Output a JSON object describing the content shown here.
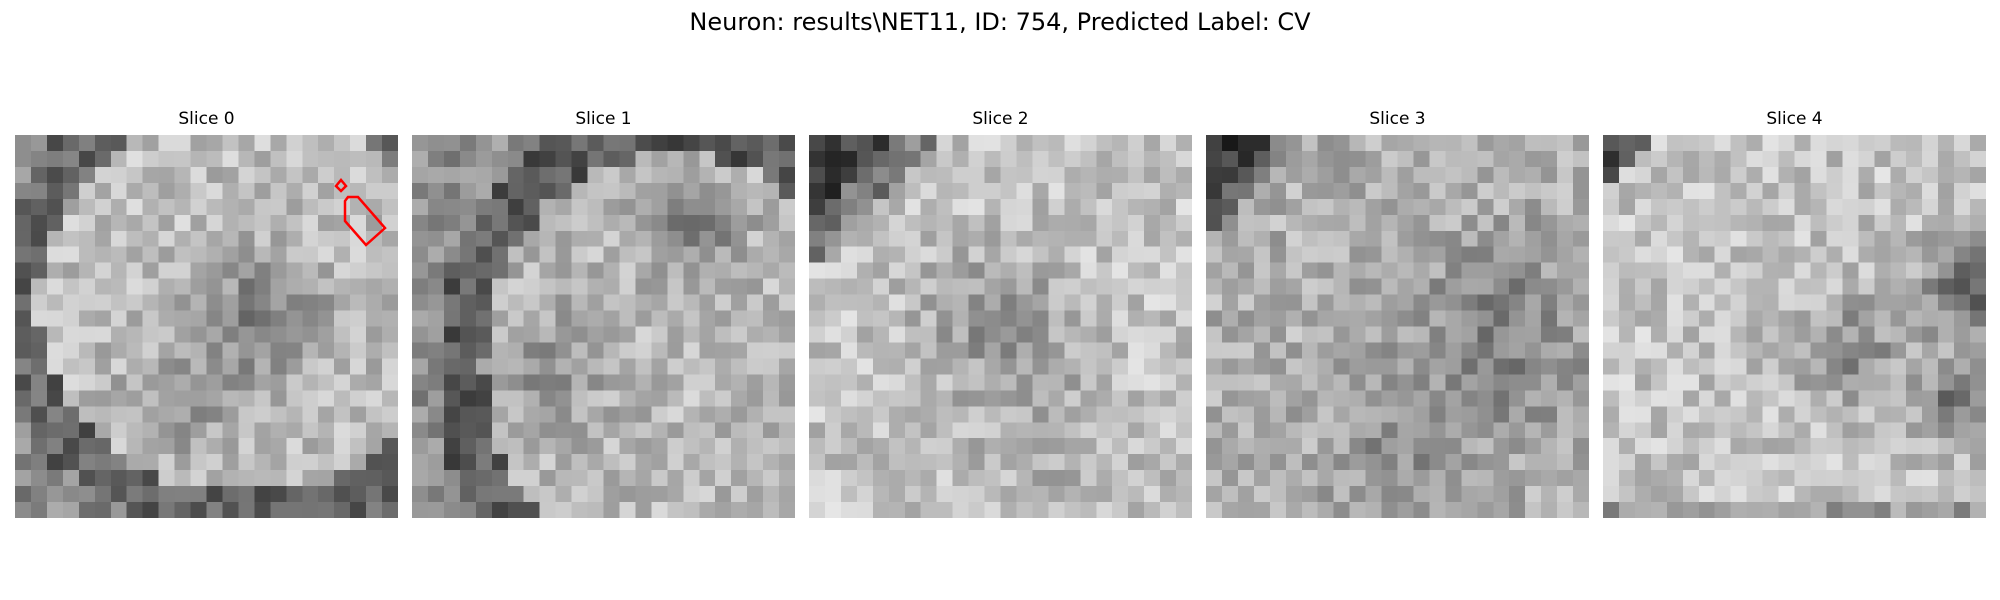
{
  "figure": {
    "title": "Neuron: results\\NET11, ID: 754, Predicted Label: CV"
  },
  "colors": {
    "background": "#ffffff",
    "annotation": "#ff0000"
  },
  "slices": [
    {
      "label": "Slice 0"
    },
    {
      "label": "Slice 1"
    },
    {
      "label": "Slice 2"
    },
    {
      "label": "Slice 3"
    },
    {
      "label": "Slice 4"
    }
  ]
}
